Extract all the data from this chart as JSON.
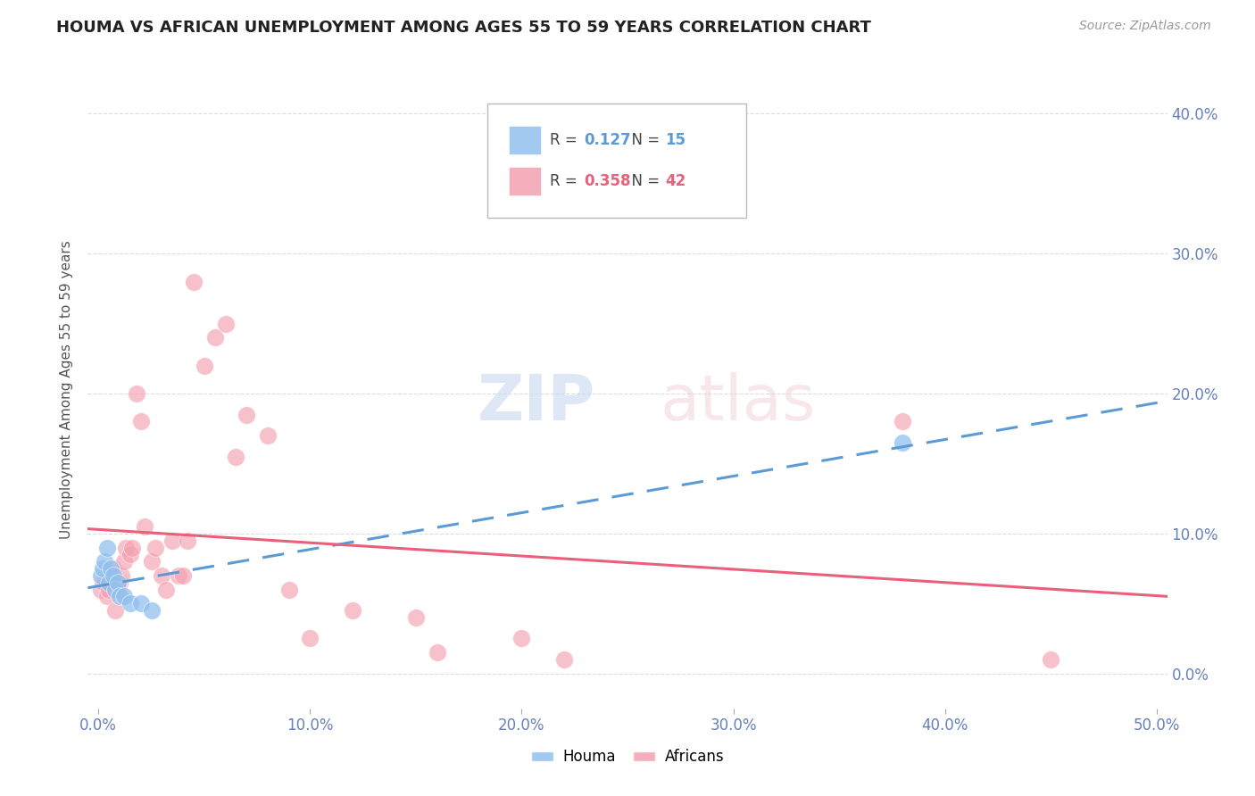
{
  "title": "HOUMA VS AFRICAN UNEMPLOYMENT AMONG AGES 55 TO 59 YEARS CORRELATION CHART",
  "source": "Source: ZipAtlas.com",
  "ylabel": "Unemployment Among Ages 55 to 59 years",
  "xlabel_ticks": [
    "0.0%",
    "10.0%",
    "20.0%",
    "30.0%",
    "40.0%",
    "50.0%"
  ],
  "xlabel_vals": [
    0.0,
    0.1,
    0.2,
    0.3,
    0.4,
    0.5
  ],
  "ylabel_ticks": [
    "0.0%",
    "10.0%",
    "20.0%",
    "30.0%",
    "40.0%"
  ],
  "ylabel_vals": [
    0.0,
    0.1,
    0.2,
    0.3,
    0.4
  ],
  "xlim": [
    -0.005,
    0.505
  ],
  "ylim": [
    -0.025,
    0.43
  ],
  "houma_R": 0.127,
  "houma_N": 15,
  "african_R": 0.358,
  "african_N": 42,
  "houma_color": "#92C0EE",
  "african_color": "#F4A0B0",
  "houma_line_color": "#5B9BD5",
  "african_line_color": "#E8607A",
  "houma_x": [
    0.001,
    0.002,
    0.003,
    0.004,
    0.005,
    0.006,
    0.007,
    0.008,
    0.009,
    0.01,
    0.012,
    0.015,
    0.02,
    0.025,
    0.38
  ],
  "houma_y": [
    0.07,
    0.075,
    0.08,
    0.09,
    0.065,
    0.075,
    0.07,
    0.06,
    0.065,
    0.055,
    0.055,
    0.05,
    0.05,
    0.045,
    0.165
  ],
  "african_x": [
    0.001,
    0.002,
    0.003,
    0.004,
    0.005,
    0.006,
    0.007,
    0.008,
    0.009,
    0.01,
    0.011,
    0.012,
    0.013,
    0.015,
    0.016,
    0.018,
    0.02,
    0.022,
    0.025,
    0.027,
    0.03,
    0.032,
    0.035,
    0.038,
    0.04,
    0.042,
    0.045,
    0.05,
    0.055,
    0.06,
    0.065,
    0.07,
    0.08,
    0.09,
    0.1,
    0.12,
    0.15,
    0.16,
    0.2,
    0.22,
    0.38,
    0.45
  ],
  "african_y": [
    0.06,
    0.065,
    0.065,
    0.055,
    0.06,
    0.07,
    0.075,
    0.045,
    0.06,
    0.065,
    0.07,
    0.08,
    0.09,
    0.085,
    0.09,
    0.2,
    0.18,
    0.105,
    0.08,
    0.09,
    0.07,
    0.06,
    0.095,
    0.07,
    0.07,
    0.095,
    0.28,
    0.22,
    0.24,
    0.25,
    0.155,
    0.185,
    0.17,
    0.06,
    0.025,
    0.045,
    0.04,
    0.015,
    0.025,
    0.01,
    0.18,
    0.01
  ],
  "background_color": "#FFFFFF",
  "grid_color": "#DDDDDD"
}
